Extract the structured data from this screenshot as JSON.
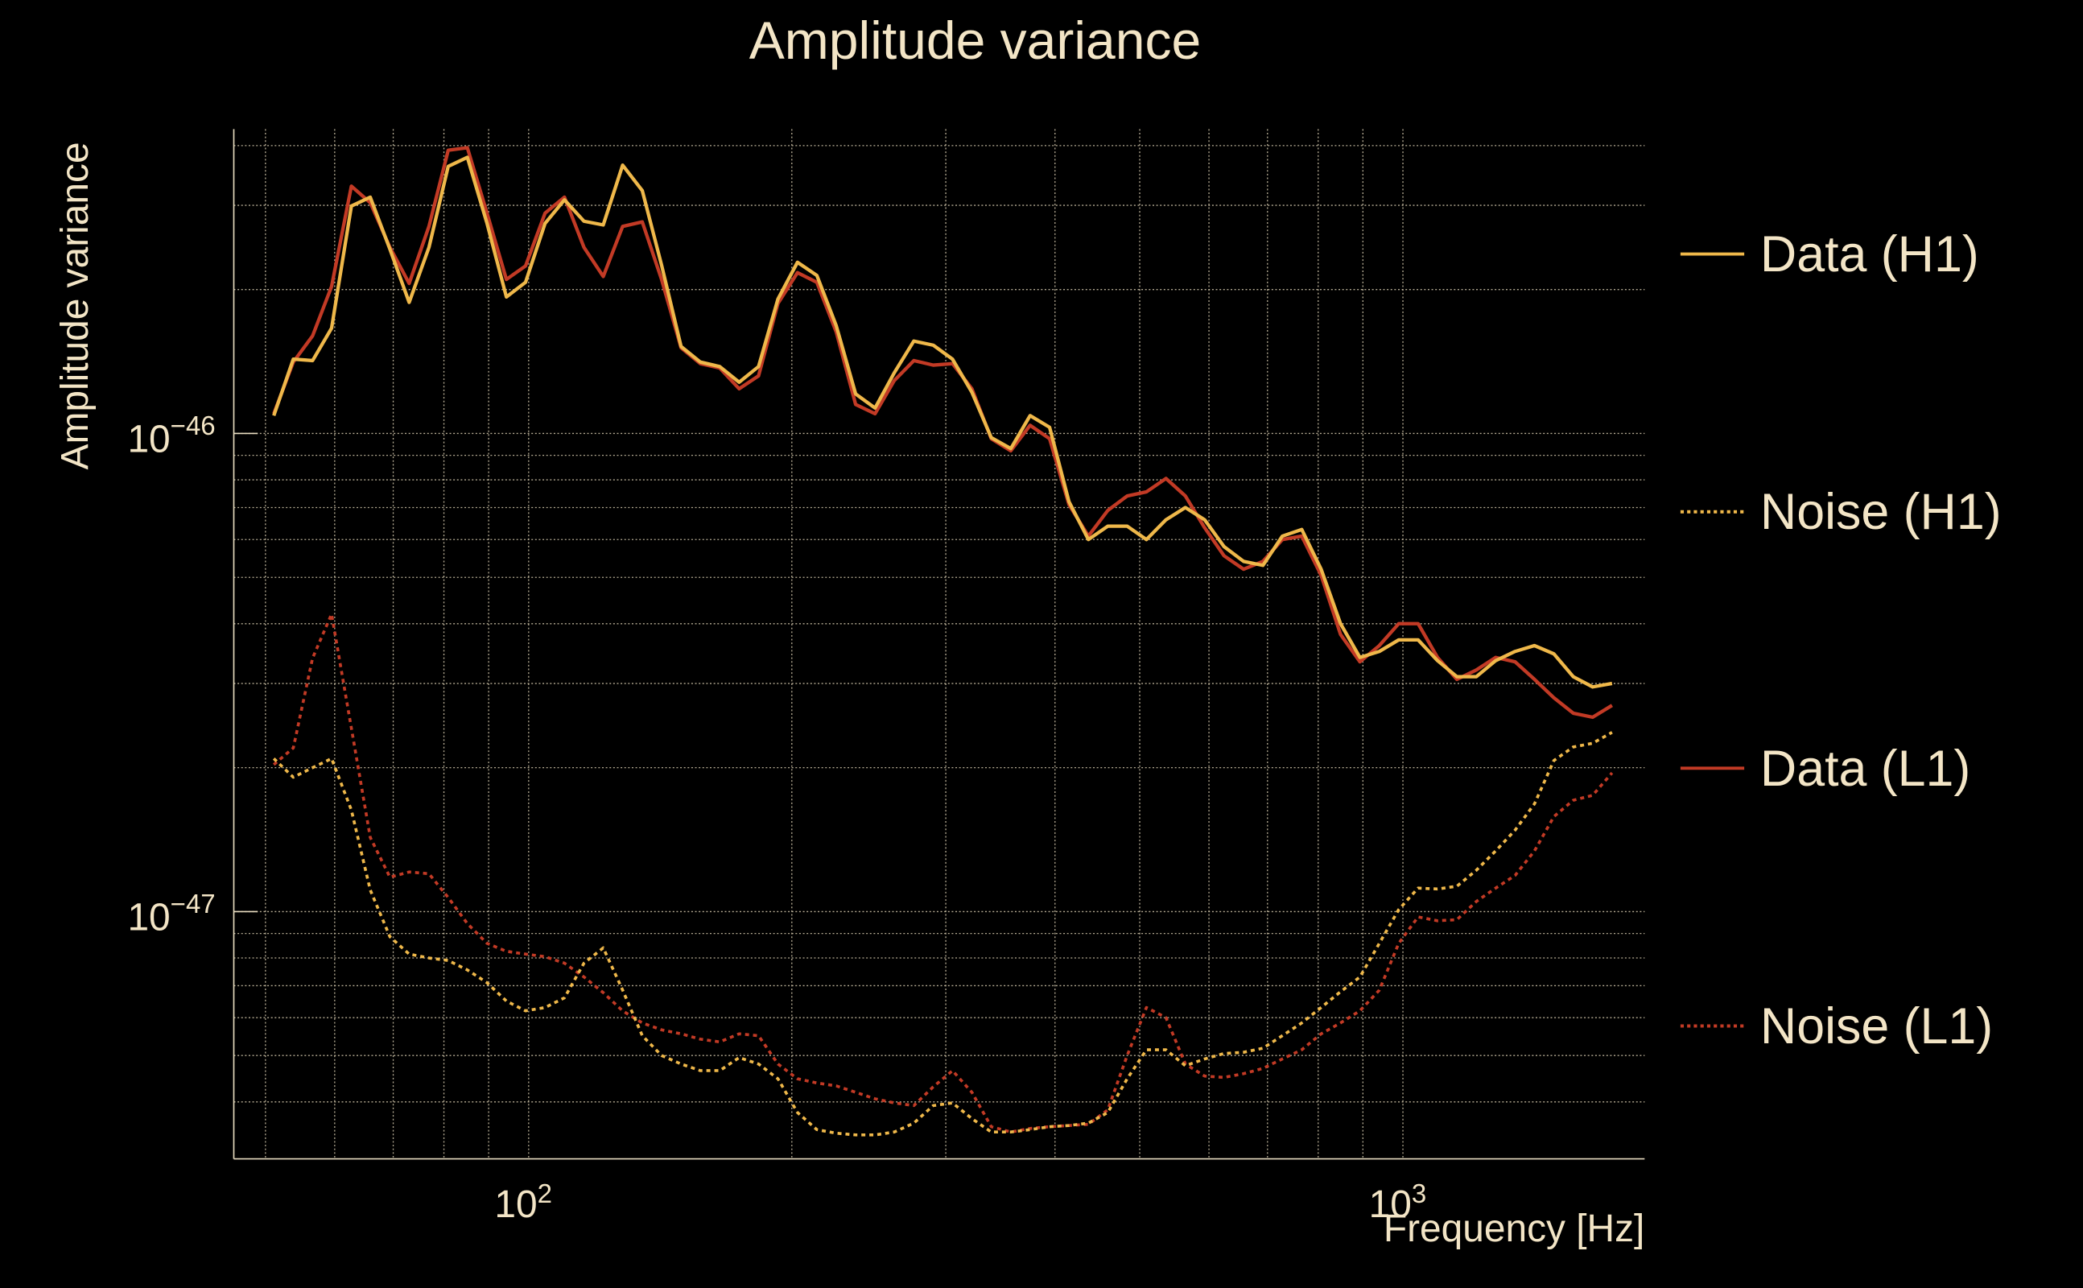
{
  "chart_data": {
    "type": "line",
    "title": "Amplitude variance",
    "xlabel": "Frequency [Hz]",
    "ylabel": "Amplitude variance",
    "xscale": "log",
    "yscale": "log",
    "xlim": [
      46,
      1890
    ],
    "ylim": [
      3.04e-48,
      4.33e-46
    ],
    "grid": true,
    "legend_position": "right-outside",
    "x_ticks": [
      {
        "value": 100,
        "base": "10",
        "exp": "2"
      },
      {
        "value": 1000,
        "base": "10",
        "exp": "3"
      }
    ],
    "y_ticks": [
      {
        "value": 1e-46,
        "base": "10",
        "exp": "−46"
      },
      {
        "value": 1e-47,
        "base": "10",
        "exp": "−47"
      }
    ],
    "x_minor_grid": [
      50,
      60,
      70,
      80,
      90,
      200,
      300,
      400,
      500,
      600,
      700,
      800,
      900
    ],
    "y_minor_grid": [
      4e-48,
      5e-48,
      6e-48,
      7e-48,
      8e-48,
      9e-48,
      2e-47,
      3e-47,
      4e-47,
      5e-47,
      6e-47,
      7e-47,
      8e-47,
      9e-47,
      2e-46,
      3e-46,
      4e-46
    ],
    "x": [
      51.1,
      53.8,
      56.6,
      59.5,
      62.7,
      65.9,
      69.4,
      73.0,
      76.9,
      80.9,
      85.1,
      89.6,
      94.3,
      99.2,
      104.4,
      109.9,
      115.7,
      121.7,
      128.1,
      134.9,
      141.9,
      149.4,
      157.2,
      165.4,
      174.1,
      183.2,
      192.8,
      203.0,
      213.6,
      224.8,
      236.6,
      249.0,
      262.0,
      275.8,
      290.2,
      305.4,
      321.4,
      338.2,
      356.0,
      374.6,
      394.3,
      415.0,
      436.7,
      459.6,
      483.7,
      509.0,
      535.7,
      563.8,
      593.3,
      624.4,
      657.2,
      691.6,
      727.9,
      766.0,
      806.2,
      848.4,
      892.9,
      939.7,
      989.0,
      1040.8,
      1095.4,
      1152.8,
      1213.3,
      1276.9,
      1343.8,
      1414.3,
      1488.4,
      1566.4,
      1648.5,
      1735.0
    ],
    "series": [
      {
        "name": "Data (H1)",
        "color": "#efb84a",
        "style": "solid",
        "scale": 1e-46,
        "values": [
          1.09,
          1.43,
          1.42,
          1.66,
          2.99,
          3.12,
          2.43,
          1.88,
          2.45,
          3.62,
          3.78,
          2.75,
          1.93,
          2.07,
          2.75,
          3.08,
          2.78,
          2.73,
          3.64,
          3.22,
          2.25,
          1.52,
          1.41,
          1.38,
          1.28,
          1.38,
          1.91,
          2.28,
          2.14,
          1.68,
          1.21,
          1.13,
          1.34,
          1.56,
          1.53,
          1.43,
          1.22,
          0.98,
          0.93,
          1.09,
          1.03,
          0.72,
          0.6,
          0.64,
          0.64,
          0.6,
          0.66,
          0.7,
          0.66,
          0.58,
          0.54,
          0.53,
          0.61,
          0.63,
          0.52,
          0.4,
          0.34,
          0.35,
          0.37,
          0.37,
          0.335,
          0.31,
          0.31,
          0.335,
          0.35,
          0.36,
          0.346,
          0.31,
          0.295,
          0.3
        ]
      },
      {
        "name": "Noise (H1)",
        "color": "#efb84a",
        "style": "dotted",
        "scale": 1e-47,
        "values": [
          2.09,
          1.91,
          2.0,
          2.09,
          1.63,
          1.11,
          0.886,
          0.815,
          0.8,
          0.79,
          0.755,
          0.71,
          0.65,
          0.62,
          0.63,
          0.66,
          0.78,
          0.84,
          0.685,
          0.55,
          0.5,
          0.48,
          0.465,
          0.465,
          0.495,
          0.48,
          0.447,
          0.38,
          0.35,
          0.344,
          0.341,
          0.341,
          0.346,
          0.361,
          0.393,
          0.398,
          0.369,
          0.346,
          0.346,
          0.35,
          0.355,
          0.357,
          0.361,
          0.38,
          0.447,
          0.514,
          0.514,
          0.476,
          0.492,
          0.505,
          0.508,
          0.518,
          0.55,
          0.585,
          0.63,
          0.68,
          0.73,
          0.858,
          1.01,
          1.12,
          1.115,
          1.13,
          1.22,
          1.34,
          1.48,
          1.68,
          2.07,
          2.21,
          2.25,
          2.37
        ]
      },
      {
        "name": "Data (L1)",
        "color": "#c23a25",
        "style": "solid",
        "scale": 1e-46,
        "values": [
          1.1,
          1.41,
          1.6,
          2.03,
          3.29,
          3.04,
          2.45,
          2.06,
          2.71,
          3.91,
          3.96,
          2.89,
          2.1,
          2.24,
          2.89,
          3.12,
          2.45,
          2.13,
          2.71,
          2.77,
          2.1,
          1.51,
          1.4,
          1.37,
          1.24,
          1.32,
          1.87,
          2.17,
          2.07,
          1.63,
          1.15,
          1.1,
          1.29,
          1.42,
          1.39,
          1.4,
          1.24,
          0.975,
          0.92,
          1.04,
          0.975,
          0.71,
          0.61,
          0.69,
          0.74,
          0.755,
          0.805,
          0.74,
          0.635,
          0.555,
          0.52,
          0.54,
          0.6,
          0.61,
          0.505,
          0.38,
          0.333,
          0.36,
          0.4,
          0.4,
          0.34,
          0.306,
          0.32,
          0.34,
          0.333,
          0.306,
          0.28,
          0.26,
          0.255,
          0.27
        ]
      },
      {
        "name": "Noise (L1)",
        "color": "#c23a25",
        "style": "dotted",
        "scale": 1e-47,
        "values": [
          2.03,
          2.2,
          3.39,
          4.19,
          2.42,
          1.43,
          1.18,
          1.21,
          1.2,
          1.07,
          0.944,
          0.858,
          0.826,
          0.815,
          0.805,
          0.78,
          0.73,
          0.677,
          0.62,
          0.585,
          0.566,
          0.555,
          0.541,
          0.534,
          0.555,
          0.55,
          0.48,
          0.447,
          0.438,
          0.432,
          0.419,
          0.406,
          0.398,
          0.393,
          0.43,
          0.465,
          0.419,
          0.355,
          0.346,
          0.352,
          0.355,
          0.357,
          0.359,
          0.385,
          0.5,
          0.63,
          0.6,
          0.48,
          0.453,
          0.45,
          0.458,
          0.47,
          0.492,
          0.514,
          0.555,
          0.585,
          0.62,
          0.685,
          0.858,
          0.975,
          0.957,
          0.962,
          1.05,
          1.12,
          1.19,
          1.34,
          1.58,
          1.71,
          1.75,
          1.95
        ]
      }
    ]
  }
}
